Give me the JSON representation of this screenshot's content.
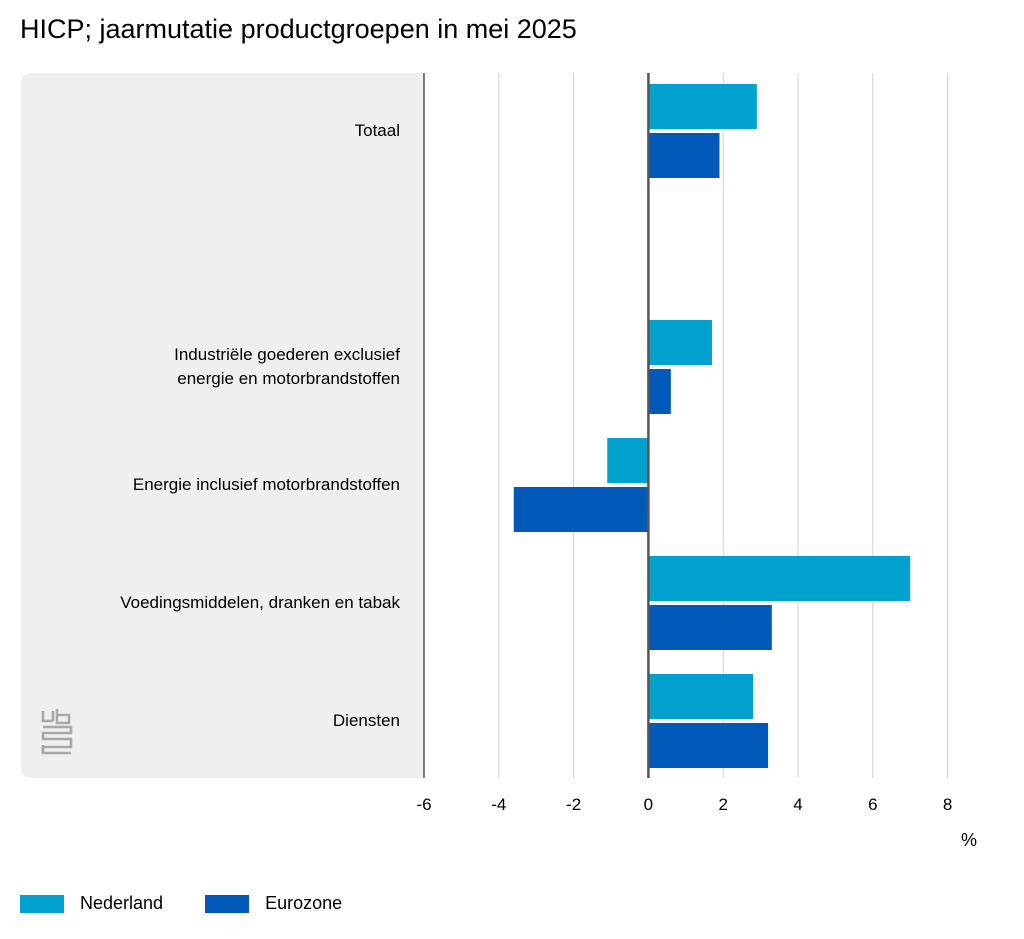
{
  "title": "HICP; jaarmutatie productgroepen in mei 2025",
  "unit_label": "%",
  "logo_icon": "cbs-logo-icon",
  "colors": {
    "nederland": "#00a1cd",
    "eurozone": "#0058b8",
    "panel": "#efefef",
    "grid": "#d0d0d0",
    "axis": "#555555"
  },
  "chart_data": {
    "type": "bar",
    "orientation": "horizontal",
    "categories": [
      "Totaal",
      "",
      "Industriële goederen exclusief energie en motorbrandstoffen",
      "Energie inclusief motorbrandstoffen",
      "Voedingsmiddelen, dranken en tabak",
      "Diensten"
    ],
    "category_lines": [
      [
        "Totaal"
      ],
      [],
      [
        "Industriële goederen exclusief",
        "energie en motorbrandstoffen"
      ],
      [
        "Energie inclusief motorbrandstoffen"
      ],
      [
        "Voedingsmiddelen, dranken en tabak"
      ],
      [
        "Diensten"
      ]
    ],
    "series": [
      {
        "name": "Nederland",
        "values": [
          2.9,
          null,
          1.7,
          -1.1,
          7.0,
          2.8
        ]
      },
      {
        "name": "Eurozone",
        "values": [
          1.9,
          null,
          0.6,
          -3.6,
          3.3,
          3.2
        ]
      }
    ],
    "xlim": [
      -6,
      8
    ],
    "xticks": [
      -6,
      -4,
      -2,
      0,
      2,
      4,
      6,
      8
    ],
    "grid": true,
    "legend_position": "bottom-left"
  }
}
